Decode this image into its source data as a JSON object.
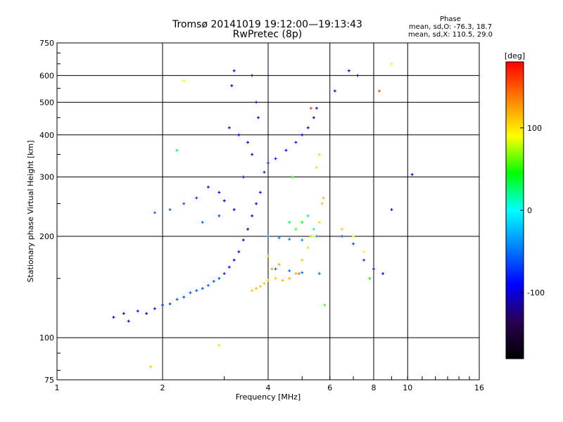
{
  "title_line1": "Tromsø 20141019 19:12:00—19:13:43",
  "title_line2": "RwPretec (8p)",
  "phase_box": {
    "title": "Phase",
    "line_o": "mean, sd,O: -76.3, 18.7",
    "line_x": "mean, sd,X: 110.5, 29.0"
  },
  "chart_data": {
    "type": "scatter",
    "xlabel": "Frequency [MHz]",
    "ylabel": "Stationary phase Virtual Height [km]",
    "x_scale": "log",
    "y_scale": "log",
    "xlim": [
      1,
      16
    ],
    "ylim": [
      75,
      750
    ],
    "x_ticks": [
      1,
      2,
      4,
      6,
      8,
      10,
      16
    ],
    "y_ticks": [
      75,
      100,
      200,
      300,
      400,
      500,
      600,
      750
    ],
    "grid": true,
    "colorbar": {
      "label": "[deg]",
      "range": [
        -180,
        180
      ],
      "ticks": [
        100,
        0,
        -100
      ],
      "colormap": [
        "#000000",
        "#2a0050",
        "#0000ff",
        "#0080ff",
        "#00ffff",
        "#00ff00",
        "#ffff00",
        "#ff8000",
        "#ff0000"
      ]
    },
    "series": [
      {
        "comment_colors": "blue O-mode traces",
        "points": [
          [
            1.45,
            115,
            -90
          ],
          [
            1.55,
            118,
            -95
          ],
          [
            1.6,
            112,
            -90
          ],
          [
            1.7,
            120,
            -85
          ],
          [
            1.8,
            118,
            -92
          ],
          [
            1.9,
            122,
            -88
          ],
          [
            2.0,
            125,
            -80
          ],
          [
            2.1,
            126,
            -70
          ],
          [
            2.2,
            130,
            -60
          ],
          [
            2.3,
            132,
            -65
          ],
          [
            2.4,
            136,
            -62
          ],
          [
            2.5,
            138,
            -58
          ],
          [
            2.6,
            140,
            -60
          ],
          [
            2.7,
            143,
            -55
          ],
          [
            2.8,
            147,
            -58
          ],
          [
            2.9,
            150,
            -62
          ],
          [
            3.0,
            155,
            -75
          ],
          [
            3.1,
            162,
            -85
          ],
          [
            3.2,
            170,
            -90
          ],
          [
            3.3,
            180,
            -88
          ],
          [
            3.4,
            195,
            -92
          ],
          [
            3.5,
            210,
            -95
          ],
          [
            3.6,
            230,
            -92
          ],
          [
            3.7,
            250,
            -90
          ],
          [
            3.8,
            270,
            -88
          ],
          [
            3.2,
            240,
            -92
          ],
          [
            3.0,
            255,
            -95
          ],
          [
            2.9,
            270,
            -90
          ],
          [
            2.7,
            280,
            -85
          ],
          [
            2.5,
            260,
            -70
          ],
          [
            2.3,
            250,
            -60
          ],
          [
            2.1,
            240,
            -55
          ],
          [
            1.9,
            235,
            -50
          ],
          [
            3.4,
            300,
            -95
          ],
          [
            3.6,
            350,
            -92
          ],
          [
            3.5,
            380,
            -90
          ],
          [
            3.3,
            400,
            -88
          ],
          [
            3.1,
            420,
            -85
          ],
          [
            3.15,
            560,
            -90
          ],
          [
            3.2,
            620,
            -92
          ],
          [
            3.6,
            600,
            -95
          ],
          [
            3.7,
            500,
            -88
          ],
          [
            3.75,
            450,
            -86
          ],
          [
            3.9,
            310,
            -80
          ],
          [
            4.0,
            330,
            -75
          ],
          [
            4.2,
            340,
            -80
          ],
          [
            4.5,
            360,
            -85
          ],
          [
            4.8,
            380,
            -88
          ],
          [
            5.0,
            400,
            -90
          ],
          [
            5.2,
            420,
            -92
          ],
          [
            5.4,
            450,
            -88
          ],
          [
            5.5,
            480,
            -85
          ],
          [
            4.0,
            200,
            -50
          ],
          [
            4.3,
            198,
            -48
          ],
          [
            4.6,
            196,
            -45
          ],
          [
            5.0,
            195,
            -40
          ],
          [
            5.5,
            200,
            -35
          ],
          [
            4.2,
            160,
            -55
          ],
          [
            4.6,
            158,
            -52
          ],
          [
            5.0,
            156,
            -50
          ],
          [
            5.6,
            155,
            -48
          ],
          [
            6.5,
            200,
            -60
          ],
          [
            7.0,
            190,
            -65
          ],
          [
            7.5,
            170,
            -70
          ],
          [
            8.0,
            160,
            -80
          ],
          [
            8.5,
            155,
            -85
          ],
          [
            6.2,
            540,
            -90
          ],
          [
            6.8,
            620,
            -95
          ],
          [
            7.2,
            600,
            -92
          ],
          [
            9.0,
            240,
            -85
          ],
          [
            10.3,
            305,
            -88
          ],
          [
            2.9,
            230,
            -60
          ],
          [
            2.6,
            220,
            -55
          ]
        ]
      },
      {
        "comment_colors": "orange X-mode traces",
        "points": [
          [
            3.6,
            138,
            110
          ],
          [
            3.7,
            140,
            115
          ],
          [
            3.8,
            142,
            112
          ],
          [
            3.9,
            145,
            110
          ],
          [
            4.0,
            148,
            108
          ],
          [
            4.2,
            150,
            112
          ],
          [
            4.4,
            148,
            115
          ],
          [
            4.6,
            150,
            118
          ],
          [
            4.8,
            155,
            120
          ],
          [
            5.0,
            170,
            110
          ],
          [
            5.2,
            185,
            105
          ],
          [
            5.4,
            200,
            100
          ],
          [
            5.6,
            220,
            105
          ],
          [
            5.7,
            250,
            110
          ],
          [
            5.75,
            260,
            112
          ],
          [
            4.1,
            160,
            125
          ],
          [
            4.3,
            165,
            120
          ],
          [
            4.0,
            175,
            115
          ],
          [
            1.85,
            82,
            110
          ],
          [
            2.3,
            580,
            95
          ],
          [
            6.5,
            210,
            108
          ],
          [
            7.0,
            200,
            100
          ],
          [
            7.5,
            180,
            95
          ],
          [
            8.3,
            540,
            150
          ],
          [
            5.6,
            350,
            105
          ],
          [
            5.5,
            320,
            102
          ],
          [
            4.9,
            155,
            140
          ],
          [
            5.3,
            480,
            160
          ]
        ]
      },
      {
        "comment_colors": "green/yellow cross-over points",
        "points": [
          [
            4.8,
            210,
            60
          ],
          [
            5.0,
            220,
            40
          ],
          [
            5.2,
            230,
            20
          ],
          [
            5.4,
            210,
            10
          ],
          [
            5.3,
            200,
            70
          ],
          [
            4.6,
            220,
            30
          ],
          [
            2.9,
            95,
            80
          ],
          [
            2.2,
            360,
            30
          ],
          [
            5.8,
            125,
            60
          ],
          [
            7.8,
            150,
            50
          ],
          [
            9.0,
            650,
            95
          ],
          [
            4.7,
            300,
            50
          ]
        ]
      }
    ]
  }
}
